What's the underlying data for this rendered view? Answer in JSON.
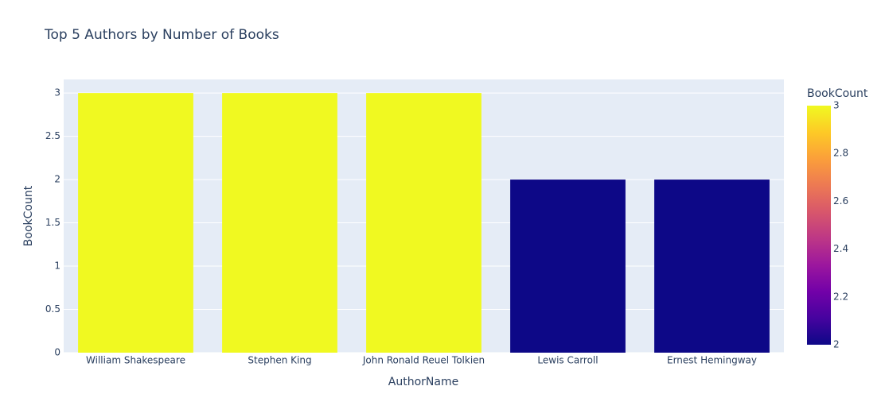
{
  "chart_data": {
    "type": "bar",
    "title": "Top 5 Authors by Number of Books",
    "x_label": "AuthorName",
    "y_label": "BookCount",
    "categories": [
      "William Shakespeare",
      "Stephen King",
      "John Ronald Reuel Tolkien",
      "Lewis Carroll",
      "Ernest Hemingway"
    ],
    "values": [
      3,
      3,
      3,
      2,
      2
    ],
    "ylim": [
      0,
      3.157
    ],
    "yticks": [
      0,
      0.5,
      1,
      1.5,
      2,
      2.5,
      3
    ],
    "grid": true,
    "colorbar_title": "BookCount",
    "colorlim": [
      2,
      3
    ],
    "colorticks": [
      2,
      2.2,
      2.4,
      2.6,
      2.8,
      3
    ],
    "colorscale": [
      "#0d0887",
      "#46039f",
      "#7201a8",
      "#9c179e",
      "#bd3786",
      "#d8576b",
      "#ed7953",
      "#fb9f3a",
      "#fdca26",
      "#f0f921"
    ]
  }
}
